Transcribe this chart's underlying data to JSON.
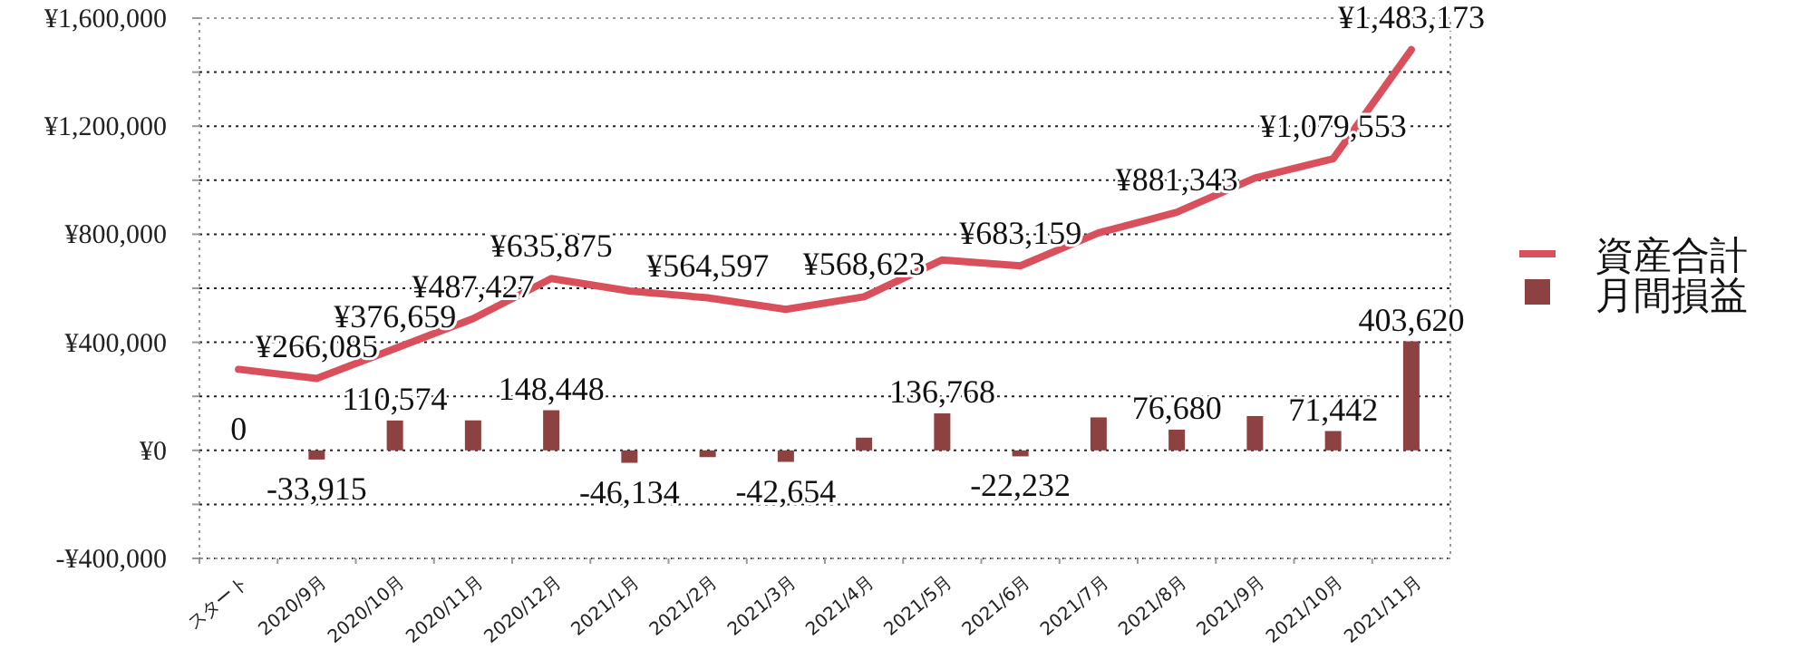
{
  "chart_data": {
    "type": "bar",
    "categories": [
      "スタート",
      "2020/9月",
      "2020/10月",
      "2020/11月",
      "2020/12月",
      "2021/1月",
      "2021/2月",
      "2021/3月",
      "2021/4月",
      "2021/5月",
      "2021/6月",
      "2021/7月",
      "2021/8月",
      "2021/9月",
      "2021/10月",
      "2021/11月"
    ],
    "series": [
      {
        "name": "資産合計",
        "type": "line",
        "color": "#d9505c",
        "values": [
          300000,
          266085,
          376659,
          487427,
          635875,
          590000,
          564597,
          522000,
          568623,
          705000,
          683159,
          805000,
          881343,
          1008000,
          1079553,
          1483173
        ],
        "value_labels": [
          null,
          "¥266,085",
          "¥376,659",
          "¥487,427",
          "¥635,875",
          null,
          "¥564,597",
          null,
          "¥568,623",
          null,
          "¥683,159",
          null,
          "¥881,343",
          null,
          "¥1,079,553",
          "¥1,483,173"
        ]
      },
      {
        "name": "月間損益",
        "color": "#8e4141",
        "values": [
          0,
          -33915,
          110574,
          111000,
          148448,
          -46134,
          -25000,
          -42654,
          47000,
          136768,
          -22232,
          122000,
          76680,
          127000,
          71442,
          403620
        ],
        "value_labels": [
          "0",
          "-33,915",
          "110,574",
          null,
          "148,448",
          "-46,134",
          null,
          "-42,654",
          null,
          "136,768",
          "-22,232",
          null,
          "76,680",
          null,
          "71,442",
          "403,620"
        ]
      }
    ],
    "ylim": [
      -400000,
      1600000
    ],
    "yticks": [
      {
        "value": -400000,
        "label": "-¥400,000"
      },
      {
        "value": -200000,
        "label": null
      },
      {
        "value": 0,
        "label": "¥0"
      },
      {
        "value": 200000,
        "label": null
      },
      {
        "value": 400000,
        "label": "¥400,000"
      },
      {
        "value": 600000,
        "label": null
      },
      {
        "value": 800000,
        "label": "¥800,000"
      },
      {
        "value": 1000000,
        "label": null
      },
      {
        "value": 1200000,
        "label": "¥1,200,000"
      },
      {
        "value": 1400000,
        "label": null
      },
      {
        "value": 1600000,
        "label": "¥1,600,000"
      }
    ],
    "grid": "y",
    "legend": "right"
  }
}
